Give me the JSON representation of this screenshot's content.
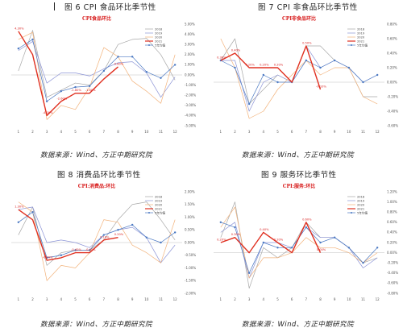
{
  "figures": [
    {
      "caption": "图 6  CPI 食品环比季节性",
      "source": "数据来源：Wind、方正中期研究院"
    },
    {
      "caption": "图 7  CPI 非食品环比季节性",
      "source": "数据来源：Wind、方正中期研究院"
    },
    {
      "caption": "图 8  消费品环比季节性",
      "source": "数据来源：Wind、方正中期研究院"
    },
    {
      "caption": "图 9  服务环比季节性",
      "source": "数据来源：Wind、方正中期研究院"
    }
  ],
  "colors": {
    "s2018": "#a8a8a8",
    "s2019": "#8c94d6",
    "s2020": "#f2b27a",
    "s2021": "#e03020",
    "avg": "#4a78c2",
    "title": "#d81e1e"
  },
  "chart_data": [
    {
      "type": "line",
      "title": "CPI食品环比",
      "categories": [
        "1",
        "2",
        "3",
        "4",
        "5",
        "6",
        "7",
        "8",
        "9",
        "10",
        "11",
        "12"
      ],
      "ylim": [
        -5,
        5
      ],
      "yticks": [
        -5,
        -4,
        -3,
        -2,
        -1,
        0,
        1,
        2,
        3,
        4,
        5
      ],
      "ytick_labels": [
        "-5.00%",
        "-4.00%",
        "-3.00%",
        "-2.00%",
        "-1.00%",
        "0.00%",
        "1.00%",
        "2.00%",
        "3.00%",
        "4.00%",
        "5.00%"
      ],
      "legend": [
        "2018",
        "2019",
        "2020",
        "2021",
        "5年均值"
      ],
      "series": [
        {
          "name": "2018",
          "values": [
            0.4,
            4.4,
            -2.2,
            -1.5,
            -0.8,
            -1.0,
            0.4,
            3.0,
            3.5,
            3.6,
            2.0,
            -0.5
          ]
        },
        {
          "name": "2019",
          "values": [
            2.4,
            3.3,
            -0.8,
            0.2,
            0.2,
            -0.1,
            0.6,
            1.2,
            1.3,
            0.2,
            -2.2,
            -0.2
          ]
        },
        {
          "name": "2020",
          "values": [
            3.5,
            4.2,
            -4.4,
            -3.0,
            -3.4,
            -1.2,
            2.7,
            1.8,
            -0.6,
            -1.6,
            -2.8,
            2.0
          ]
        },
        {
          "name": "2021",
          "values": [
            4.3,
            2.0,
            -4.0,
            -2.6,
            -1.8,
            -1.8,
            -0.4,
            0.8,
            null,
            null,
            null,
            null
          ]
        },
        {
          "name": "5年均值",
          "values": [
            2.6,
            3.5,
            -2.6,
            -1.6,
            -1.2,
            -1.1,
            0.4,
            1.8,
            1.8,
            0.3,
            -0.3,
            1.0
          ]
        }
      ],
      "data_labels": [
        {
          "x": "1",
          "y": 4.3,
          "text": "4.30%"
        },
        {
          "x": "3",
          "y": -4.0,
          "text": "-4.00%"
        },
        {
          "x": "4",
          "y": -2.6,
          "text": "-2.60%"
        },
        {
          "x": "5",
          "y": -1.8,
          "text": "-1.80%"
        },
        {
          "x": "6",
          "y": -1.8,
          "text": "-1.80%"
        },
        {
          "x": "8",
          "y": 0.8,
          "text": "0.80%"
        }
      ]
    },
    {
      "type": "line",
      "title": "CPI非食品环比",
      "categories": [
        "1",
        "2",
        "3",
        "4",
        "5",
        "6",
        "7",
        "8",
        "9",
        "10",
        "11",
        "12"
      ],
      "ylim": [
        -0.6,
        0.8
      ],
      "yticks": [
        -0.6,
        -0.4,
        -0.2,
        0,
        0.2,
        0.4,
        0.6,
        0.8
      ],
      "ytick_labels": [
        "-0.60%",
        "-0.40%",
        "-0.20%",
        "0.00%",
        "0.20%",
        "0.40%",
        "0.60%",
        "0.80%"
      ],
      "legend": [
        "2018",
        "2019",
        "2020",
        "2021",
        "5年均值"
      ],
      "series": [
        {
          "name": "2018",
          "values": [
            0.3,
            0.6,
            -0.3,
            -0.1,
            0.1,
            0.0,
            0.5,
            0.5,
            0.3,
            0.2,
            -0.2,
            -0.2
          ]
        },
        {
          "name": "2019",
          "values": [
            0.3,
            0.3,
            -0.4,
            0.0,
            0.1,
            0.0,
            0.5,
            0.2,
            0.3,
            0.2,
            0.0,
            0.1
          ]
        },
        {
          "name": "2020",
          "values": [
            0.6,
            0.2,
            -0.5,
            -0.4,
            -0.1,
            0.1,
            0.3,
            0.1,
            0.2,
            0.2,
            -0.2,
            -0.3
          ]
        },
        {
          "name": "2021",
          "values": [
            0.3,
            0.4,
            0.2,
            0.2,
            0.2,
            0.0,
            0.5,
            -0.1,
            null,
            null,
            null,
            null
          ]
        },
        {
          "name": "5年均值",
          "values": [
            0.3,
            0.2,
            -0.3,
            0.1,
            0.0,
            0.0,
            0.3,
            0.2,
            0.3,
            0.2,
            0.0,
            0.1
          ]
        }
      ],
      "data_labels": [
        {
          "x": "1",
          "y": 0.3,
          "text": "0.30%"
        },
        {
          "x": "2",
          "y": 0.4,
          "text": "0.40%"
        },
        {
          "x": "3",
          "y": 0.2,
          "text": "0.20%"
        },
        {
          "x": "4",
          "y": 0.2,
          "text": "0.20%"
        },
        {
          "x": "5",
          "y": 0.2,
          "text": "0.20%"
        },
        {
          "x": "7",
          "y": 0.5,
          "text": "0.50%"
        },
        {
          "x": "8",
          "y": -0.1,
          "text": "-0.10%"
        }
      ]
    },
    {
      "type": "line",
      "title": "CPI:消费品:环比",
      "categories": [
        "1",
        "2",
        "3",
        "4",
        "5",
        "6",
        "7",
        "8",
        "9",
        "10",
        "11",
        "12"
      ],
      "ylim": [
        -2,
        2
      ],
      "yticks": [
        -2,
        -1.5,
        -1,
        -0.5,
        0,
        0.5,
        1,
        1.5,
        2
      ],
      "ytick_labels": [
        "-2.00%",
        "-1.50%",
        "-1.00%",
        "-0.50%",
        "0.00%",
        "0.50%",
        "1.00%",
        "1.50%",
        "2.00%"
      ],
      "legend": [
        "2018",
        "2019",
        "2020",
        "2021",
        "5年均值"
      ],
      "series": [
        {
          "name": "2018",
          "values": [
            0.3,
            1.4,
            -0.9,
            -0.4,
            -0.3,
            -0.3,
            0.1,
            0.9,
            1.5,
            1.6,
            0.9,
            0.1
          ]
        },
        {
          "name": "2019",
          "values": [
            1.3,
            1.4,
            0.0,
            0.1,
            0.0,
            -0.2,
            0.3,
            0.5,
            0.6,
            0.2,
            -0.8,
            -0.1
          ]
        },
        {
          "name": "2020",
          "values": [
            1.6,
            1.2,
            -1.5,
            -0.9,
            -1.0,
            -0.4,
            0.9,
            0.8,
            -0.1,
            -0.4,
            -0.8,
            0.9
          ]
        },
        {
          "name": "2021",
          "values": [
            1.3,
            0.9,
            -0.7,
            -0.6,
            -0.4,
            -0.4,
            0.1,
            0.2,
            null,
            null,
            null,
            null
          ]
        },
        {
          "name": "5年均值",
          "values": [
            0.8,
            1.2,
            -0.6,
            -0.5,
            -0.3,
            -0.3,
            0.3,
            0.5,
            0.7,
            0.2,
            0.0,
            0.4
          ]
        }
      ],
      "data_labels": [
        {
          "x": "1",
          "y": 1.3,
          "text": "1.30%"
        },
        {
          "x": "3",
          "y": -0.7,
          "text": "-0.70%"
        },
        {
          "x": "5",
          "y": -0.4,
          "text": "-0.40%"
        },
        {
          "x": "6",
          "y": -0.4,
          "text": "-0.40%"
        },
        {
          "x": "7",
          "y": 0.1,
          "text": "0.10%"
        },
        {
          "x": "8",
          "y": 0.2,
          "text": "0.20%"
        }
      ]
    },
    {
      "type": "line",
      "title": "CPI:服务:环比",
      "categories": [
        "1",
        "2",
        "3",
        "4",
        "5",
        "6",
        "7",
        "8",
        "9",
        "10",
        "11",
        "12"
      ],
      "ylim": [
        -0.8,
        1.2
      ],
      "yticks": [
        -0.8,
        -0.6,
        -0.4,
        -0.2,
        0,
        0.2,
        0.4,
        0.6,
        0.8,
        1.0,
        1.2
      ],
      "ytick_labels": [
        "-0.80%",
        "-0.60%",
        "-0.40%",
        "-0.20%",
        "0.00%",
        "0.20%",
        "0.40%",
        "0.60%",
        "0.80%",
        "1.00%",
        "1.20%"
      ],
      "legend": [
        "2018",
        "2019",
        "2020",
        "2021",
        "5年均值"
      ],
      "series": [
        {
          "name": "2018",
          "values": [
            0.3,
            1.0,
            -0.7,
            0.1,
            -0.1,
            0.1,
            0.6,
            0.3,
            0.3,
            0.1,
            -0.2,
            -0.1
          ]
        },
        {
          "name": "2019",
          "values": [
            0.4,
            0.6,
            -0.5,
            0.2,
            0.2,
            0.1,
            0.5,
            0.3,
            0.3,
            0.1,
            -0.3,
            -0.1
          ]
        },
        {
          "name": "2020",
          "values": [
            0.5,
            0.9,
            -0.5,
            -0.1,
            -0.1,
            0.0,
            0.3,
            0.1,
            0.1,
            0.0,
            -0.2,
            0.0
          ]
        },
        {
          "name": "2021",
          "values": [
            0.2,
            0.3,
            0.0,
            0.4,
            0.2,
            0.0,
            0.6,
            0.0,
            null,
            null,
            null,
            null
          ]
        },
        {
          "name": "5年均值",
          "values": [
            0.6,
            0.5,
            -0.4,
            0.2,
            0.1,
            0.1,
            0.5,
            0.2,
            0.3,
            0.1,
            -0.2,
            0.1
          ]
        }
      ],
      "data_labels": [
        {
          "x": "1",
          "y": 0.2,
          "text": "0.20%"
        },
        {
          "x": "2",
          "y": 0.3,
          "text": "0.30%"
        },
        {
          "x": "4",
          "y": 0.4,
          "text": "0.40%"
        },
        {
          "x": "5",
          "y": 0.2,
          "text": "0.20%"
        },
        {
          "x": "7",
          "y": 0.6,
          "text": "0.60%"
        },
        {
          "x": "8",
          "y": 0.0,
          "text": "0.00%"
        }
      ]
    }
  ]
}
